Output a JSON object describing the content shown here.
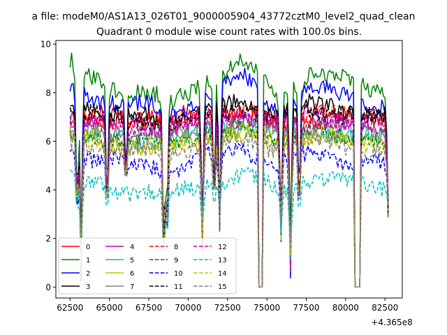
{
  "figure": {
    "suptitle": "a file: modeM0/AS1A13_026T01_9000005904_43772cztM0_level2_quad_clean",
    "title": "Quadrant 0 module wise count rates with 100.0s bins.",
    "offset_text": "+4.365e8"
  },
  "chart_data": {
    "type": "line",
    "title": "Quadrant 0 module wise count rates with 100.0s bins.",
    "xlim": [
      61600,
      83600
    ],
    "ylim": [
      -0.45,
      10.15
    ],
    "x_ticks": [
      62500,
      65000,
      67500,
      70000,
      72500,
      75000,
      77500,
      80000,
      82500
    ],
    "x_tick_labels": [
      "62500",
      "65000",
      "67500",
      "70000",
      "72500",
      "75000",
      "77500",
      "80000",
      "82500"
    ],
    "x_offset": "+4.365e8",
    "y_ticks": [
      0,
      2,
      4,
      6,
      8,
      10
    ],
    "y_tick_labels": [
      "0",
      "2",
      "4",
      "6",
      "8",
      "10"
    ],
    "gaps": [
      [
        74500,
        74750
      ],
      [
        80600,
        80950
      ]
    ],
    "dips": [
      [
        62950,
        2.8
      ],
      [
        63200,
        1.2
      ],
      [
        64850,
        3.1
      ],
      [
        66050,
        4.2
      ],
      [
        68450,
        0.7
      ],
      [
        68650,
        1.8
      ],
      [
        70900,
        2.2
      ],
      [
        71650,
        3.3
      ],
      [
        72000,
        3.0
      ],
      [
        75900,
        2.4
      ],
      [
        76500,
        1.3
      ],
      [
        77050,
        2.9
      ],
      [
        82700,
        3.5
      ]
    ],
    "legend": {
      "position": "lower-left",
      "columns": 4
    },
    "series": [
      {
        "name": "0",
        "color": "#ff0000",
        "dash": "solid",
        "values": [
          6.8,
          7.1,
          7.0,
          6.9,
          7.4,
          7.1,
          6.6,
          6.8,
          7.1,
          6.9
        ]
      },
      {
        "name": "1",
        "color": "#008000",
        "dash": "solid",
        "values": [
          9.2,
          8.3,
          8.0,
          7.6,
          8.6,
          9.3,
          7.8,
          8.9,
          8.4,
          8.1
        ]
      },
      {
        "name": "2",
        "color": "#0000ff",
        "dash": "solid",
        "values": [
          8.2,
          7.7,
          7.5,
          7.2,
          7.9,
          8.6,
          7.3,
          8.2,
          7.8,
          7.4
        ]
      },
      {
        "name": "3",
        "color": "#000000",
        "dash": "solid",
        "values": [
          7.7,
          7.2,
          7.0,
          6.9,
          7.4,
          7.5,
          7.2,
          7.5,
          7.3,
          7.0
        ]
      },
      {
        "name": "4",
        "color": "#bf00bf",
        "dash": "solid",
        "values": [
          7.0,
          6.8,
          6.7,
          6.6,
          7.0,
          7.1,
          6.8,
          7.1,
          6.9,
          6.7
        ]
      },
      {
        "name": "5",
        "color": "#00bfbf",
        "dash": "solid",
        "values": [
          6.5,
          6.2,
          6.1,
          6.0,
          6.4,
          6.7,
          6.3,
          6.5,
          6.3,
          6.1
        ]
      },
      {
        "name": "6",
        "color": "#bfbf00",
        "dash": "solid",
        "values": [
          6.3,
          6.0,
          5.9,
          5.8,
          6.2,
          6.4,
          6.0,
          6.3,
          6.1,
          5.9
        ]
      },
      {
        "name": "7",
        "color": "#808080",
        "dash": "solid",
        "values": [
          6.7,
          6.4,
          6.3,
          6.2,
          6.6,
          6.8,
          6.4,
          6.7,
          6.5,
          6.3
        ]
      },
      {
        "name": "8",
        "color": "#ff0000",
        "dash": "dashed",
        "values": [
          7.1,
          6.9,
          6.8,
          6.7,
          7.1,
          7.2,
          6.9,
          7.2,
          7.0,
          6.8
        ]
      },
      {
        "name": "9",
        "color": "#008000",
        "dash": "dashed",
        "values": [
          6.4,
          6.1,
          6.0,
          5.9,
          6.3,
          6.5,
          6.1,
          6.4,
          6.2,
          6.0
        ]
      },
      {
        "name": "10",
        "color": "#0000ff",
        "dash": "dashed",
        "values": [
          5.6,
          5.2,
          5.0,
          4.9,
          5.4,
          5.7,
          5.1,
          5.4,
          5.2,
          5.0
        ]
      },
      {
        "name": "11",
        "color": "#000000",
        "dash": "dashed",
        "values": [
          7.4,
          7.0,
          6.9,
          6.8,
          7.2,
          7.4,
          7.0,
          7.3,
          7.1,
          6.9
        ]
      },
      {
        "name": "12",
        "color": "#bf00bf",
        "dash": "dashed",
        "values": [
          6.9,
          6.7,
          6.6,
          6.5,
          6.9,
          7.0,
          6.6,
          6.9,
          6.7,
          6.5
        ]
      },
      {
        "name": "13",
        "color": "#00bfbf",
        "dash": "dashed",
        "values": [
          4.5,
          4.1,
          3.9,
          3.8,
          4.3,
          4.6,
          4.0,
          4.5,
          4.3,
          4.1
        ]
      },
      {
        "name": "14",
        "color": "#bfbf00",
        "dash": "dashed",
        "values": [
          6.2,
          5.9,
          5.8,
          5.7,
          6.1,
          6.3,
          5.9,
          6.2,
          6.0,
          5.8
        ]
      },
      {
        "name": "15",
        "color": "#808080",
        "dash": "dashed",
        "values": [
          6.0,
          5.7,
          5.6,
          5.5,
          5.9,
          6.1,
          5.7,
          6.0,
          5.8,
          5.6
        ]
      }
    ],
    "x_anchor_values": [
      62500,
      64700,
      66900,
      69100,
      71300,
      73500,
      75700,
      77900,
      80100,
      82700
    ]
  }
}
